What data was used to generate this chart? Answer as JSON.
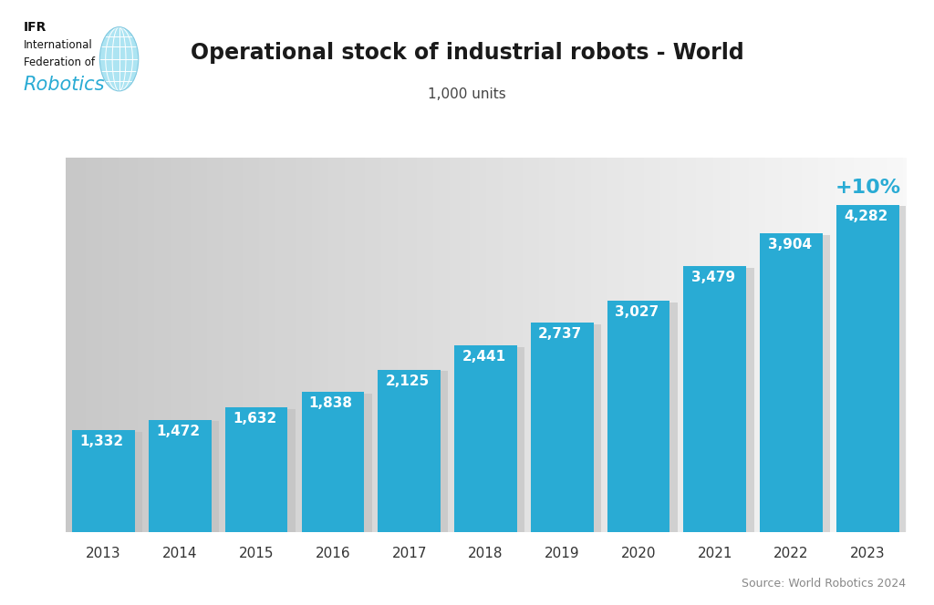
{
  "years": [
    2013,
    2014,
    2015,
    2016,
    2017,
    2018,
    2019,
    2020,
    2021,
    2022,
    2023
  ],
  "values": [
    1332,
    1472,
    1632,
    1838,
    2125,
    2441,
    2737,
    3027,
    3479,
    3904,
    4282
  ],
  "bar_color": "#29ABD4",
  "title": "Operational stock of industrial robots - World",
  "subtitle": "1,000 units",
  "source_text": "Source: World Robotics 2024",
  "annotation_pct": "+10%",
  "annotation_pct_color": "#29ABD4",
  "value_label_color": "#FFFFFF",
  "title_fontsize": 17,
  "subtitle_fontsize": 11,
  "bar_label_fontsize": 11,
  "annotation_pct_fontsize": 16,
  "ylim_max": 4900,
  "logo_text_ifr": "IFR",
  "logo_text_line2": "International",
  "logo_text_line3": "Federation of",
  "logo_text_robotics": "Robotics",
  "shadow_color": "#BBBBBB",
  "grad_left": "#C8C8C8",
  "grad_right": "#F8F8F8"
}
